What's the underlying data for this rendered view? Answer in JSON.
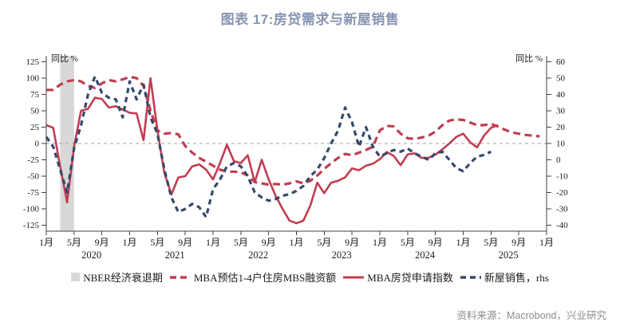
{
  "title": "图表 17:房贷需求与新屋销售",
  "axes": {
    "left_unit": "同比 %",
    "right_unit": "同比 %",
    "left_ticks": [
      125,
      100,
      75,
      50,
      25,
      0,
      -25,
      -50,
      -75,
      -100,
      -125
    ],
    "right_ticks": [
      60,
      50,
      40,
      30,
      20,
      10,
      0,
      -10,
      -20,
      -30,
      -40
    ],
    "x_month_labels": [
      "1月",
      "5月",
      "9月",
      "1月",
      "5月",
      "9月",
      "1月",
      "5月",
      "9月",
      "1月",
      "5月",
      "9月",
      "1月",
      "5月",
      "9月",
      "1月",
      "5月",
      "9月",
      "1月"
    ],
    "x_years": [
      "2020",
      "2021",
      "2022",
      "2023",
      "2024",
      "2025"
    ]
  },
  "legend": [
    {
      "label": "NBER经济衰退期",
      "swatch": "band"
    },
    {
      "label": "MBA预估1-4户住房MBS融资额",
      "swatch": "red-dashed"
    },
    {
      "label": "MBA房贷申请指数",
      "swatch": "red-solid"
    },
    {
      "label": "新屋销售，rhs",
      "swatch": "navy-dashed"
    }
  ],
  "source": "资料来源：Macrobond，兴业研究",
  "colors": {
    "red": "#C23D52",
    "navy": "#35496B",
    "band": "#D8D8D8",
    "title": "#8595B2",
    "zero_line": "#A3A3A3",
    "axis": "#404040",
    "source": "#8C8C8C"
  },
  "chart_data": {
    "type": "line",
    "title": "图表 17:房贷需求与新屋销售",
    "x_start": "2020-01",
    "x_end": "2026-01",
    "left_ylim": [
      -125,
      125
    ],
    "right_ylim": [
      -40,
      60
    ],
    "left_unit": "同比 %",
    "right_unit": "同比 %",
    "grid": "zero-line-only",
    "legend_position": "bottom",
    "recession_band": {
      "from": "2020-02",
      "to": "2020-04"
    },
    "series": [
      {
        "name": "MBA预估1-4户住房MBS融资额",
        "axis": "left",
        "style": "dashed",
        "color_key": "red",
        "start": "2020-01",
        "values": [
          82,
          82,
          90,
          95,
          97,
          95,
          88,
          85,
          92,
          97,
          95,
          98,
          102,
          100,
          88,
          50,
          20,
          15,
          16,
          14,
          -4,
          -14,
          -22,
          -28,
          -34,
          -40,
          -43,
          -43,
          -44,
          -49,
          -59,
          -61,
          -63,
          -62,
          -63,
          -61,
          -58,
          -61,
          -57,
          -49,
          -39,
          -30,
          -22,
          -16,
          -18,
          -14,
          -10,
          -5,
          20,
          27,
          26,
          15,
          8,
          7,
          9,
          12,
          18,
          28,
          35,
          37,
          36,
          32,
          28,
          28,
          30,
          26,
          21,
          17,
          15,
          13,
          12,
          11
        ]
      },
      {
        "name": "MBA房贷申请指数",
        "axis": "left",
        "style": "solid",
        "color_key": "red",
        "start": "2020-01",
        "values": [
          28,
          24,
          -35,
          -90,
          -5,
          50,
          53,
          70,
          68,
          55,
          57,
          52,
          47,
          46,
          5,
          100,
          20,
          -45,
          -78,
          -52,
          -50,
          -35,
          -32,
          -40,
          -55,
          -30,
          -2,
          -27,
          -30,
          -18,
          -59,
          -25,
          -55,
          -80,
          -100,
          -118,
          -122,
          -118,
          -95,
          -60,
          -76,
          -60,
          -57,
          -52,
          -38,
          -41,
          -34,
          -31,
          -24,
          -13,
          -19,
          -33,
          -17,
          -15,
          -22,
          -22,
          -17,
          -9,
          0,
          10,
          15,
          2,
          -6,
          12,
          24,
          28
        ]
      },
      {
        "name": "新屋销售",
        "axis": "right",
        "style": "dashed",
        "color_key": "navy",
        "start": "2020-01",
        "values": [
          14,
          8,
          -6,
          -20,
          7,
          21,
          40,
          51,
          41,
          38,
          37,
          26,
          48,
          37,
          46,
          26,
          16,
          -6,
          -23,
          -32,
          -30,
          -27,
          -29,
          -35,
          -18,
          -12,
          -4,
          -2,
          -4,
          -10,
          -20,
          -23,
          -25,
          -24,
          -22,
          -21,
          -19,
          -16,
          -10,
          -6,
          1,
          10,
          18,
          32,
          23,
          8,
          20,
          8,
          2,
          4,
          6,
          5,
          7,
          4,
          2,
          0,
          4,
          5,
          0,
          -5,
          -7,
          -2,
          2,
          3,
          5
        ]
      }
    ]
  }
}
